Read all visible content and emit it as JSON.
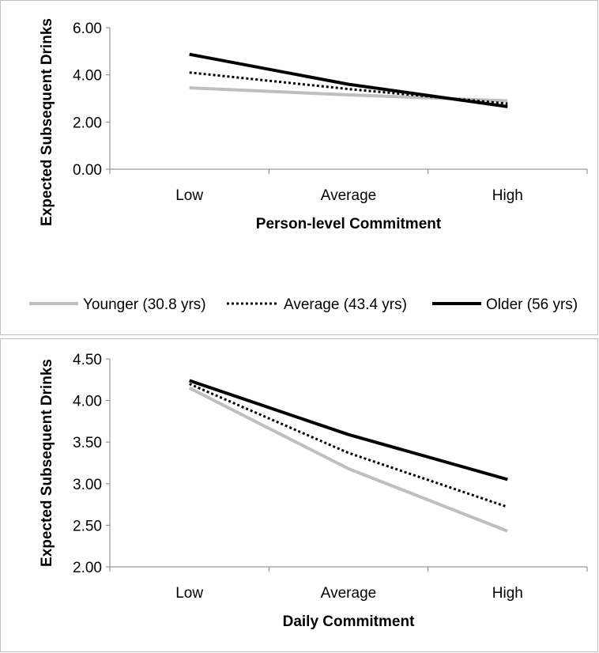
{
  "chart_data": [
    {
      "type": "line",
      "categories": [
        "Low",
        "Average",
        "High"
      ],
      "xlabel": "Person-level Commitment",
      "ylabel": "Expected Subsequent Drinks",
      "ylim": [
        0,
        6
      ],
      "yticks": [
        "0.00",
        "2.00",
        "4.00",
        "6.00"
      ],
      "grid": false,
      "legend_position": "bottom",
      "series": [
        {
          "name": "Younger (30.8 yrs)",
          "values": [
            3.45,
            3.15,
            2.9
          ],
          "color": "#bfbfbf",
          "style": "solid"
        },
        {
          "name": "Average (43.4 yrs)",
          "values": [
            4.1,
            3.4,
            2.78
          ],
          "color": "#000000",
          "style": "dotted"
        },
        {
          "name": "Older (56 yrs)",
          "values": [
            4.87,
            3.6,
            2.65
          ],
          "color": "#000000",
          "style": "solid"
        }
      ]
    },
    {
      "type": "line",
      "categories": [
        "Low",
        "Average",
        "High"
      ],
      "xlabel": "Daily Commitment",
      "ylabel": "Expected Subsequent Drinks",
      "ylim": [
        2,
        4.5
      ],
      "yticks": [
        "2.00",
        "2.50",
        "3.00",
        "3.50",
        "4.00",
        "4.50"
      ],
      "grid": false,
      "series": [
        {
          "name": "Younger (30.8 yrs)",
          "values": [
            4.15,
            3.18,
            2.43
          ],
          "color": "#bfbfbf",
          "style": "solid"
        },
        {
          "name": "Average (43.4 yrs)",
          "values": [
            4.2,
            3.37,
            2.72
          ],
          "color": "#000000",
          "style": "dotted"
        },
        {
          "name": "Older (56 yrs)",
          "values": [
            4.24,
            3.59,
            3.05
          ],
          "color": "#000000",
          "style": "solid"
        }
      ]
    }
  ]
}
